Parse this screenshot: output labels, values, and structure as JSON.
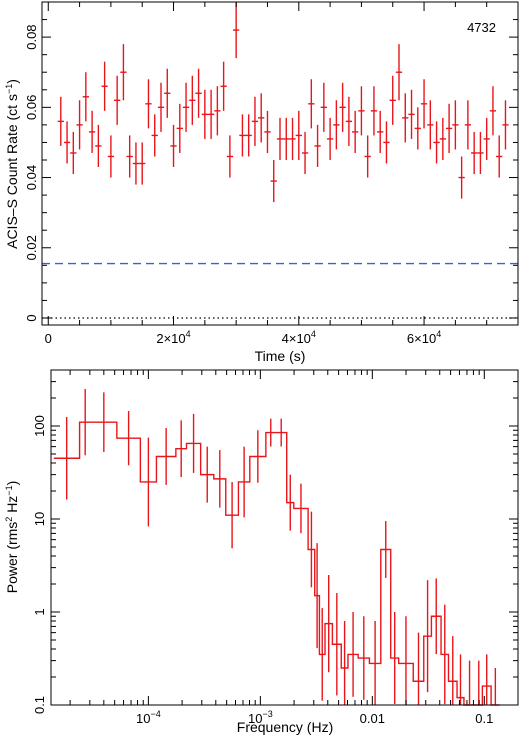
{
  "chart_data": [
    {
      "type": "scatter",
      "annotation": "4732",
      "xlabel": "Time (s)",
      "ylabel": "ACIS–S Count Rate (ct s",
      "ylabel_sup": "−1",
      "ylabel_end": ")",
      "xlim": [
        -1000,
        75000
      ],
      "ylim": [
        -0.002,
        0.09
      ],
      "x_ticks": [
        {
          "value": 0,
          "label": "0"
        },
        {
          "value": 20000,
          "label": "2×10",
          "sup": "4"
        },
        {
          "value": 40000,
          "label": "4×10",
          "sup": "4"
        },
        {
          "value": 60000,
          "label": "6×10",
          "sup": "4"
        }
      ],
      "y_ticks": [
        {
          "value": 0,
          "label": "0"
        },
        {
          "value": 0.02,
          "label": "0.02"
        },
        {
          "value": 0.04,
          "label": "0.04"
        },
        {
          "value": 0.06,
          "label": "0.06"
        },
        {
          "value": 0.08,
          "label": "0.08"
        }
      ],
      "bin_width": 1000,
      "series": [
        {
          "color": "#e8161b",
          "x": [
            2000,
            3000,
            4000,
            5000,
            6000,
            7000,
            8000,
            9000,
            10000,
            11000,
            12000,
            13000,
            14000,
            15000,
            16000,
            17000,
            18000,
            19000,
            20000,
            21000,
            22000,
            23000,
            24000,
            25000,
            26000,
            27000,
            28000,
            29000,
            30000,
            31000,
            32000,
            33000,
            34000,
            35000,
            36000,
            37000,
            38000,
            39000,
            40000,
            41000,
            42000,
            43000,
            44000,
            45000,
            46000,
            47000,
            48000,
            49000,
            50000,
            51000,
            52000,
            53000,
            54000,
            55000,
            56000,
            57000,
            58000,
            59000,
            60000,
            61000,
            62000,
            63000,
            64000,
            65000,
            66000,
            67000,
            68000,
            69000,
            70000,
            71000,
            72000,
            73000
          ],
          "y": [
            0.056,
            0.05,
            0.047,
            0.055,
            0.063,
            0.053,
            0.049,
            0.066,
            0.046,
            0.062,
            0.07,
            0.046,
            0.044,
            0.044,
            0.061,
            0.052,
            0.06,
            0.064,
            0.049,
            0.054,
            0.06,
            0.062,
            0.064,
            0.058,
            0.058,
            0.059,
            0.066,
            0.046,
            0.082,
            0.052,
            0.052,
            0.056,
            0.057,
            0.053,
            0.039,
            0.051,
            0.051,
            0.051,
            0.052,
            0.047,
            0.061,
            0.049,
            0.06,
            0.051,
            0.055,
            0.06,
            0.056,
            0.053,
            0.059,
            0.046,
            0.059,
            0.053,
            0.05,
            0.062,
            0.07,
            0.057,
            0.058,
            0.054,
            0.061,
            0.055,
            0.05,
            0.051,
            0.054,
            0.055,
            0.04,
            0.055,
            0.047,
            0.047,
            0.051,
            0.059,
            0.046,
            0.055
          ],
          "err": [
            0.007,
            0.006,
            0.006,
            0.007,
            0.007,
            0.006,
            0.006,
            0.007,
            0.006,
            0.007,
            0.008,
            0.006,
            0.006,
            0.006,
            0.007,
            0.006,
            0.007,
            0.007,
            0.006,
            0.007,
            0.007,
            0.007,
            0.007,
            0.007,
            0.007,
            0.007,
            0.007,
            0.006,
            0.008,
            0.006,
            0.006,
            0.007,
            0.007,
            0.006,
            0.006,
            0.006,
            0.006,
            0.006,
            0.007,
            0.006,
            0.007,
            0.006,
            0.007,
            0.006,
            0.007,
            0.007,
            0.007,
            0.006,
            0.007,
            0.006,
            0.007,
            0.006,
            0.006,
            0.007,
            0.008,
            0.007,
            0.007,
            0.006,
            0.007,
            0.007,
            0.006,
            0.006,
            0.007,
            0.007,
            0.006,
            0.007,
            0.006,
            0.006,
            0.006,
            0.007,
            0.006,
            0.007
          ]
        }
      ],
      "reference_lines": [
        {
          "y": 0.0155,
          "color": "#3a5fd9",
          "style": "dashed"
        },
        {
          "y": 0,
          "color": "#000000",
          "style": "dotted"
        }
      ]
    },
    {
      "type": "line",
      "xlabel": "Frequency (Hz)",
      "ylabel": "Power (rms",
      "ylabel_sup1": "2",
      "ylabel_mid": " Hz",
      "ylabel_sup2": "−1",
      "ylabel_end": ")",
      "xscale": "log",
      "yscale": "log",
      "xlim": [
        1.35e-05,
        0.2
      ],
      "ylim": [
        0.1,
        400
      ],
      "x_ticks": [
        {
          "value": 0.0001,
          "label": "10",
          "sup": "−4"
        },
        {
          "value": 0.001,
          "label": "10",
          "sup": "−3"
        },
        {
          "value": 0.01,
          "label": "0.01"
        },
        {
          "value": 0.1,
          "label": "0.1"
        }
      ],
      "y_ticks": [
        {
          "value": 0.1,
          "label": "0.1"
        },
        {
          "value": 1,
          "label": "1"
        },
        {
          "value": 10,
          "label": "10"
        },
        {
          "value": 100,
          "label": "100"
        }
      ],
      "series": [
        {
          "color": "#e8161b",
          "bin_edges": [
            1.43e-05,
            2.43e-05,
            3.06e-05,
            5.23e-05,
            8.48e-05,
            0.000118,
            0.000176,
            0.000219,
            0.000293,
            0.000384,
            0.000491,
            0.000637,
            0.000805,
            0.00112,
            0.00137,
            0.00172,
            0.00199,
            0.00267,
            0.00306,
            0.00337,
            0.00378,
            0.0044,
            0.00528,
            0.00606,
            0.00748,
            0.00942,
            0.0119,
            0.0146,
            0.0172,
            0.0232,
            0.0288,
            0.0337,
            0.0411,
            0.0479,
            0.0571,
            0.0658,
            0.0829,
            0.0961,
            0.115,
            0.137
          ],
          "values": [
            45,
            110,
            110,
            74,
            25,
            47,
            57,
            65,
            30,
            27,
            11,
            25,
            47,
            85,
            85,
            15,
            13,
            4.7,
            1.5,
            0.35,
            0.75,
            0.45,
            0.25,
            0.35,
            0.32,
            0.28,
            4.7,
            0.32,
            0.28,
            0.18,
            0.55,
            0.9,
            0.35,
            0.18,
            0.12,
            0.09,
            0.1,
            0.16,
            0.1
          ],
          "err_hi": [
            125,
            250,
            230,
            145,
            75,
            95,
            115,
            135,
            60,
            55,
            25,
            60,
            90,
            120,
            120,
            30,
            24,
            12,
            5.5,
            1.1,
            2.5,
            1.6,
            0.8,
            1,
            0.9,
            0.8,
            9.5,
            1,
            0.9,
            0.6,
            2.2,
            2.3,
            1.2,
            0.55,
            0.35,
            0.3,
            0.3,
            0.35,
            0.25
          ]
        }
      ]
    }
  ]
}
